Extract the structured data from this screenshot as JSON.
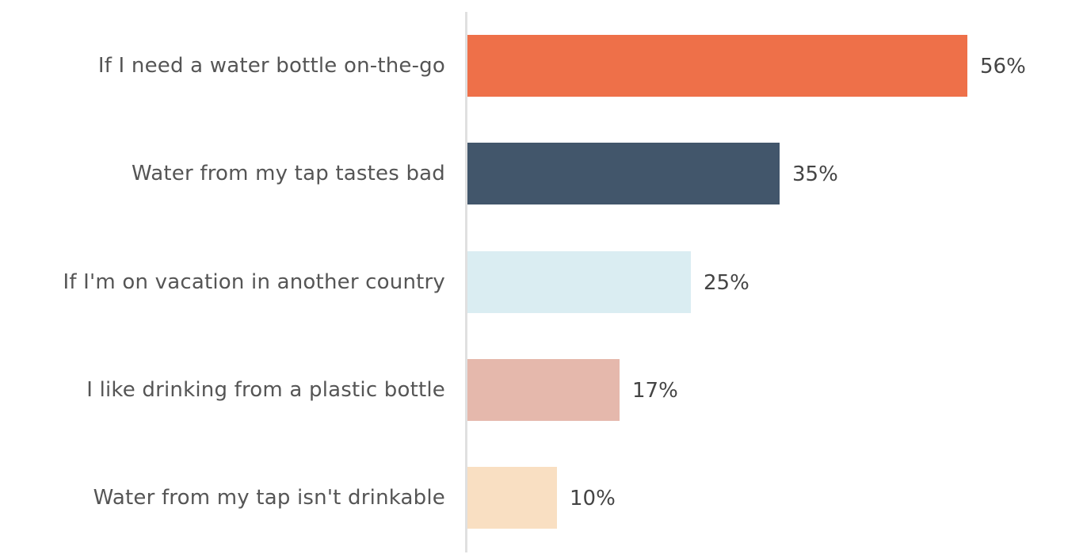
{
  "chart_data": {
    "type": "bar",
    "orientation": "horizontal",
    "title": "",
    "xlabel": "",
    "ylabel": "",
    "categories": [
      "If I need a water bottle on-the-go",
      "Water from my tap tastes bad",
      "If I'm on vacation in another country",
      "I like drinking from a plastic bottle",
      "Water from my tap isn't drinkable"
    ],
    "values": [
      56,
      35,
      25,
      17,
      10
    ],
    "value_labels": [
      "56%",
      "35%",
      "25%",
      "17%",
      "10%"
    ],
    "colors": [
      "#ee7049",
      "#42566b",
      "#daedf2",
      "#e5b8ac",
      "#f9dfc2"
    ],
    "xlim": [
      0,
      100
    ],
    "grid": false,
    "legend": null
  }
}
